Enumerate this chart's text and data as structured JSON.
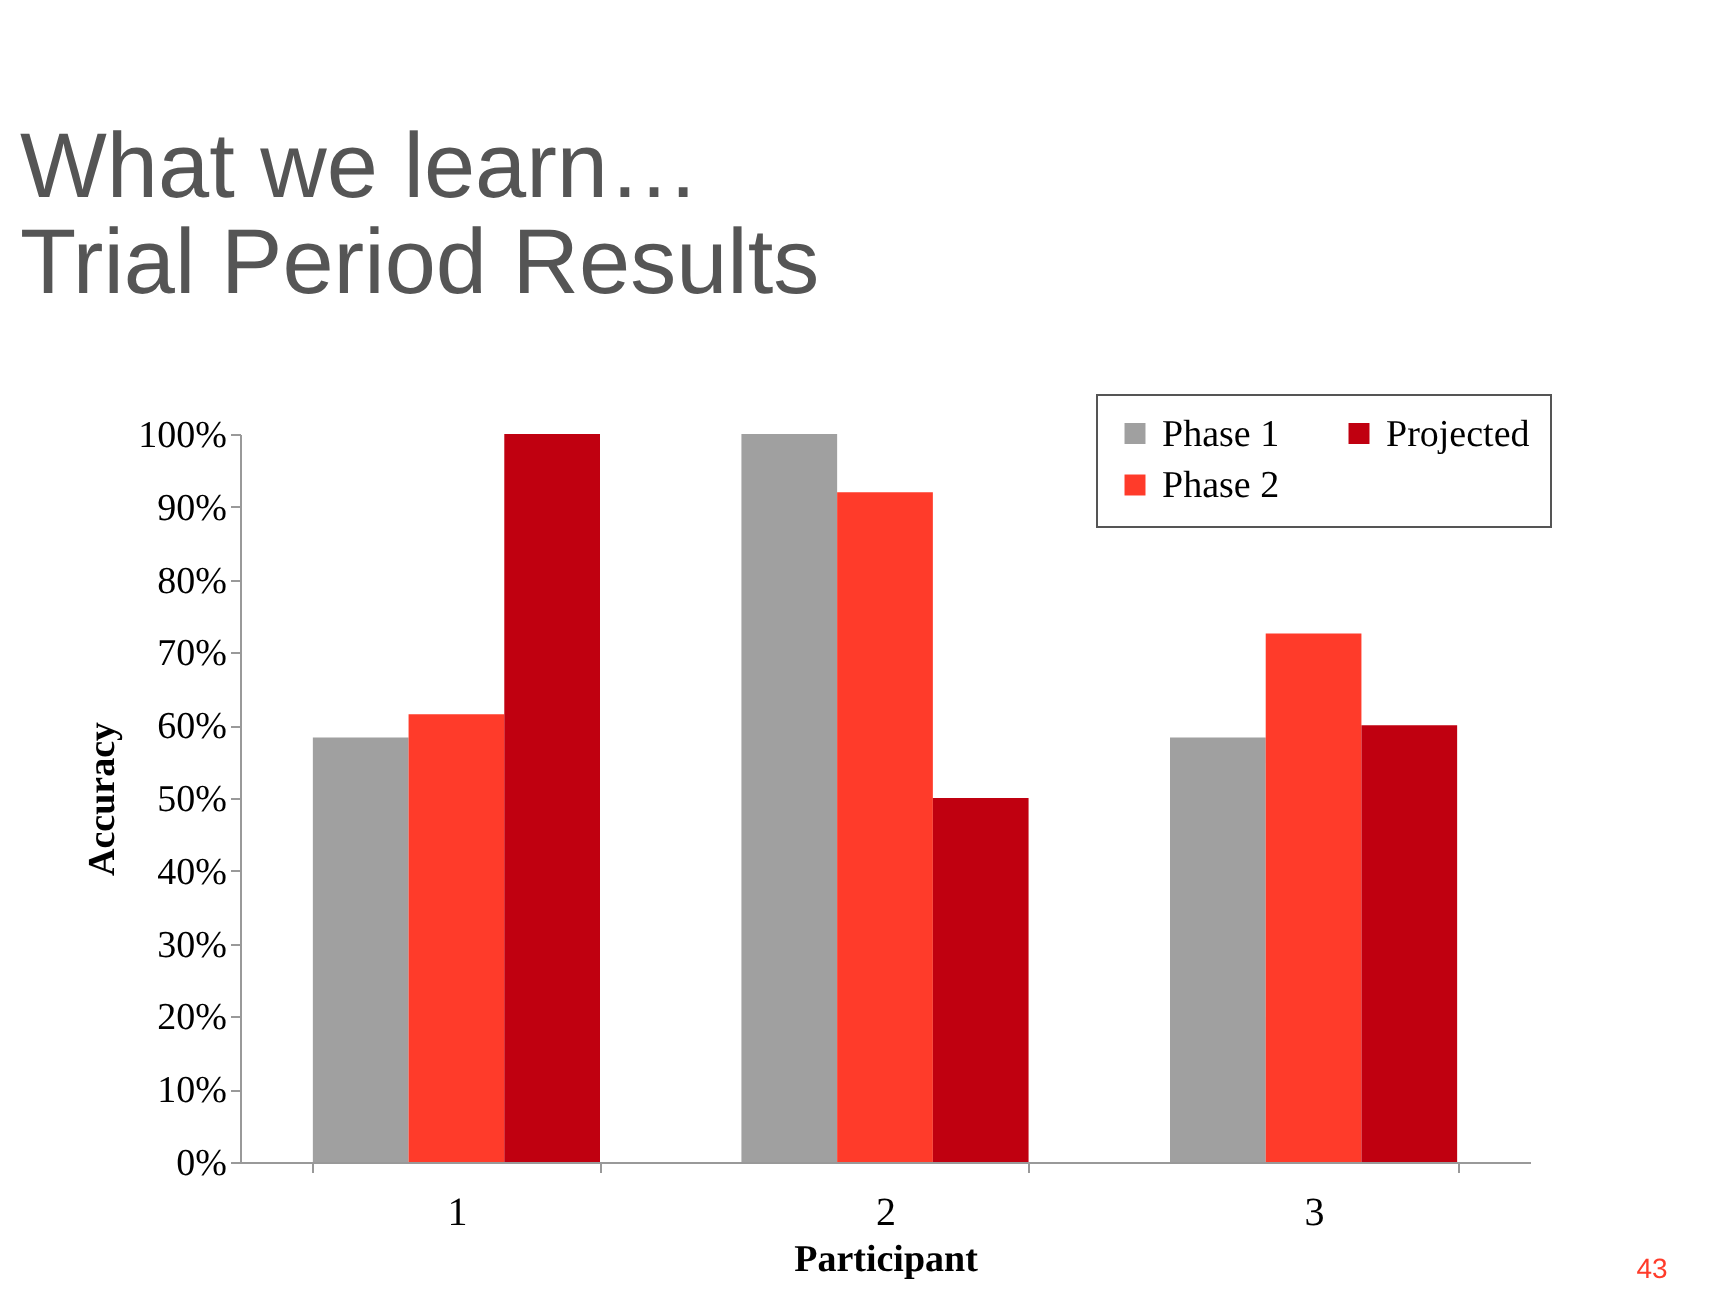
{
  "chart_data": {
    "type": "bar",
    "title": [
      "What we learn…",
      "Trial Period Results"
    ],
    "xlabel": "Participant",
    "ylabel": "Accuracy",
    "categories": [
      "1",
      "2",
      "3"
    ],
    "series": [
      {
        "name": "Phase 1",
        "color": "#a0a0a0",
        "values": [
          58.3,
          100,
          58.3
        ]
      },
      {
        "name": "Phase 2",
        "color": "#ff3b2a",
        "values": [
          61.5,
          92,
          72.6
        ]
      },
      {
        "name": "Projected",
        "color": "#c00010",
        "values": [
          100,
          50,
          60
        ]
      }
    ],
    "ylim": [
      0,
      100
    ],
    "yticks": [
      {
        "value": 0,
        "label": "0%"
      },
      {
        "value": 10,
        "label": "10%"
      },
      {
        "value": 20,
        "label": "20%"
      },
      {
        "value": 30,
        "label": "30%"
      },
      {
        "value": 40,
        "label": "40%"
      },
      {
        "value": 50,
        "label": "50%"
      },
      {
        "value": 60,
        "label": "60%"
      },
      {
        "value": 70,
        "label": "70%"
      },
      {
        "value": 80,
        "label": "80%"
      },
      {
        "value": 90,
        "label": "90%"
      },
      {
        "value": 100,
        "label": "100%"
      }
    ],
    "grid": false,
    "legend": "top right",
    "annotations": [
      "43"
    ]
  }
}
